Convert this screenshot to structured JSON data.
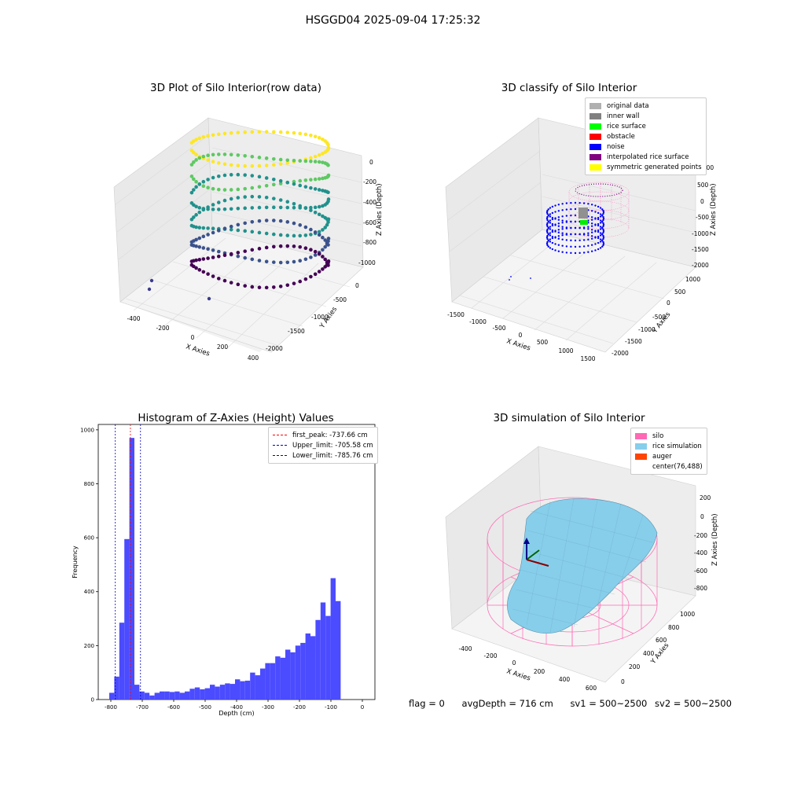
{
  "suptitle": "HSGGD04 2025-09-04 17:25:32",
  "panel1": {
    "title": "3D Plot of Silo Interior(row data)",
    "xlabel": "X Axies",
    "ylabel": "Y Axies",
    "zlabel": "Z Axies (Depth)",
    "xticks": [
      "-400",
      "-200",
      "0",
      "200",
      "400"
    ],
    "yticks": [
      "0",
      "-500",
      "-1000",
      "-1500",
      "-2000"
    ],
    "zticks": [
      "0",
      "-200",
      "-400",
      "-600",
      "-800",
      "-1000"
    ],
    "colormap": [
      "#440154",
      "#3b528b",
      "#21918c",
      "#5ec962",
      "#fde725"
    ]
  },
  "panel2": {
    "title": "3D classify of Silo Interior",
    "xlabel": "X Axies",
    "ylabel": "Y Axies",
    "zlabel": "Z Axies (Depth)",
    "xticks": [
      "-1500",
      "-1000",
      "-500",
      "0",
      "500",
      "1000",
      "1500"
    ],
    "yticks": [
      "1000",
      "500",
      "0",
      "-500",
      "-1000",
      "-1500",
      "-2000"
    ],
    "zticks": [
      "1000",
      "500",
      "0",
      "-500",
      "-1000",
      "-1500",
      "-2000"
    ],
    "legend": [
      {
        "label": "original data",
        "color": "#b0b0b0"
      },
      {
        "label": "inner wall",
        "color": "#808080"
      },
      {
        "label": "rice surface",
        "color": "#00ff00"
      },
      {
        "label": "obstacle",
        "color": "#ff0000"
      },
      {
        "label": "noise",
        "color": "#0000ff"
      },
      {
        "label": "interpolated rice surface",
        "color": "#800080"
      },
      {
        "label": "symmetric generated points",
        "color": "#ffff00"
      }
    ]
  },
  "panel3": {
    "title": "Histogram of Z-Axies (Height) Values",
    "xlabel": "Depth (cm)",
    "ylabel": "Frequency",
    "legend": [
      {
        "label": "first_peak: -737.66 cm",
        "color": "#ff0000"
      },
      {
        "label": "Upper_limit: -705.58 cm",
        "color": "#0000cc"
      },
      {
        "label": "Lower_limit: -785.76 cm",
        "color": "#0000cc"
      }
    ]
  },
  "panel4": {
    "title": "3D simulation of Silo Interior",
    "xlabel": "X Axies",
    "ylabel": "Y Axies",
    "zlabel": "Z Axies (Depth)",
    "xticks": [
      "-400",
      "-200",
      "0",
      "200",
      "400",
      "600"
    ],
    "yticks": [
      "0",
      "200",
      "400",
      "600",
      "800",
      "1000"
    ],
    "zticks": [
      "200",
      "0",
      "-200",
      "-400",
      "-600",
      "-800"
    ],
    "legend": [
      {
        "label": "silo",
        "color": "#ff69b4"
      },
      {
        "label": "rice simulation",
        "color": "#87ceeb"
      },
      {
        "label": "auger",
        "color": "#ff4500"
      },
      {
        "label": "center(76,488)",
        "color": "none"
      }
    ]
  },
  "footer": {
    "flag": "flag = 0",
    "avg": "avgDepth = 716 cm",
    "sv1": "sv1 = 500~2500",
    "sv2": "sv2 = 500~2500"
  },
  "chart_data": [
    {
      "type": "scatter",
      "title": "3D Plot of Silo Interior(row data)",
      "xlabel": "X Axies",
      "ylabel": "Y Axies",
      "zlabel": "Z Axies (Depth)",
      "xlim": [
        -500,
        500
      ],
      "ylim": [
        -2200,
        200
      ],
      "zlim": [
        -1100,
        50
      ]
    },
    {
      "type": "scatter",
      "title": "3D classify of Silo Interior",
      "xlabel": "X Axies",
      "ylabel": "Y Axies",
      "zlabel": "Z Axies (Depth)",
      "xlim": [
        -1600,
        1600
      ],
      "ylim": [
        -2100,
        1100
      ],
      "zlim": [
        -2100,
        1100
      ],
      "series": [
        {
          "name": "original data"
        },
        {
          "name": "inner wall"
        },
        {
          "name": "rice surface"
        },
        {
          "name": "obstacle"
        },
        {
          "name": "noise"
        },
        {
          "name": "interpolated rice surface"
        },
        {
          "name": "symmetric generated points"
        }
      ]
    },
    {
      "type": "bar",
      "title": "Histogram of Z-Axies (Height) Values",
      "xlabel": "Depth (cm)",
      "ylabel": "Frequency",
      "xlim": [
        -840,
        40
      ],
      "ylim": [
        0,
        1020
      ],
      "xticks": [
        -800,
        -700,
        -600,
        -500,
        -400,
        -300,
        -200,
        -100,
        0
      ],
      "yticks": [
        0,
        200,
        400,
        600,
        800,
        1000
      ],
      "bin_width": 16,
      "bin_starts": [
        -805,
        -789,
        -773,
        -757,
        -741,
        -725,
        -709,
        -693,
        -677,
        -661,
        -645,
        -629,
        -613,
        -597,
        -581,
        -565,
        -549,
        -533,
        -517,
        -501,
        -485,
        -469,
        -453,
        -437,
        -421,
        -405,
        -389,
        -373,
        -357,
        -341,
        -325,
        -309,
        -293,
        -277,
        -261,
        -245,
        -229,
        -213,
        -197,
        -181,
        -165,
        -149,
        -133,
        -117,
        -101,
        -85,
        -69,
        -53,
        -37,
        -21
      ],
      "values": [
        25,
        85,
        285,
        595,
        970,
        55,
        30,
        25,
        15,
        25,
        30,
        30,
        28,
        30,
        25,
        30,
        40,
        45,
        38,
        42,
        55,
        48,
        55,
        60,
        58,
        75,
        68,
        70,
        100,
        90,
        115,
        135,
        135,
        160,
        155,
        185,
        175,
        200,
        210,
        245,
        235,
        295,
        360,
        310,
        450,
        365,
        0,
        0,
        0,
        0
      ],
      "vlines": [
        {
          "name": "first_peak",
          "x": -737.66,
          "color": "#ff0000"
        },
        {
          "name": "Upper_limit",
          "x": -705.58,
          "color": "#0000cc"
        },
        {
          "name": "Lower_limit",
          "x": -785.76,
          "color": "#0000cc"
        }
      ]
    },
    {
      "type": "area",
      "title": "3D simulation of Silo Interior",
      "xlabel": "X Axies",
      "ylabel": "Y Axies",
      "zlabel": "Z Axies (Depth)",
      "xlim": [
        -500,
        700
      ],
      "ylim": [
        -100,
        1100
      ],
      "zlim": [
        -900,
        300
      ],
      "series": [
        {
          "name": "silo"
        },
        {
          "name": "rice simulation"
        },
        {
          "name": "auger"
        }
      ]
    }
  ]
}
